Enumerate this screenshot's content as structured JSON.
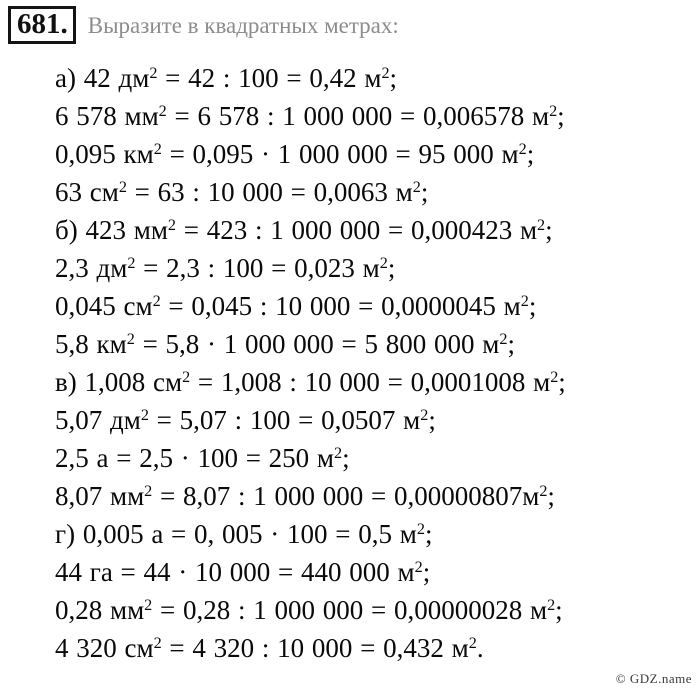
{
  "header": {
    "number": "681.",
    "title": "Выразите в квадратных метрах:"
  },
  "solution": {
    "lines": [
      "а) 42 дм² = 42 : 100 = 0,42 м²;",
      "6 578 мм² = 6 578 : 1 000 000 = 0,006578 м²;",
      "0,095 км² = 0,095 · 1 000 000 = 95 000 м²;",
      "63 см² = 63 : 10 000 = 0,0063 м²;",
      "б) 423 мм² = 423 : 1 000 000 = 0,000423 м²;",
      "2,3 дм² = 2,3 : 100 = 0,023 м²;",
      "0,045 см² = 0,045 : 10 000 = 0,0000045 м²;",
      "5,8 км² = 5,8 · 1 000 000 = 5 800 000 м²;",
      "в) 1,008 см² = 1,008 : 10 000 = 0,0001008 м²;",
      "5,07 дм² = 5,07 : 100 = 0,0507 м²;",
      "2,5 а = 2,5 · 100 = 250 м²;",
      "8,07 мм² = 8,07 : 1 000 000 = 0,00000807м²;",
      "г) 0,005 а = 0, 005 · 100 = 0,5 м²;",
      "44 га = 44 · 10 000 = 440 000 м²;",
      "0,28 мм² = 0,28 : 1 000 000 = 0,00000028 м²;",
      "4 320 см² = 4 320 : 10 000 = 0,432 м²."
    ]
  },
  "footer": {
    "watermark": "© GDZ.name"
  },
  "colors": {
    "title_gray": "#8c8c8c",
    "text_black": "#0a0a0a",
    "background": "#ffffff"
  }
}
